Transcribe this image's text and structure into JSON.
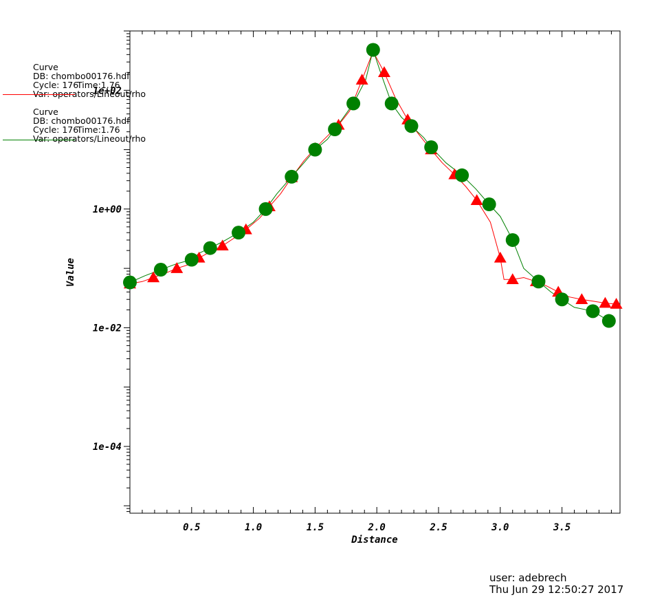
{
  "legend": [
    {
      "title": "Curve",
      "db": "DB: chombo00176.hdf",
      "cycle": "Cycle: 176",
      "time": "Time:1.76",
      "var": "Var: operators/Lineout/rho",
      "color": "#ff0000"
    },
    {
      "title": "Curve",
      "db": "DB: chombo00176.hdf",
      "cycle": "Cycle: 176",
      "time": "Time:1.76",
      "var": "Var: operators/Lineout/rho",
      "color": "#008000"
    }
  ],
  "footer": {
    "user": "user: adebrech",
    "date": "Thu Jun 29 12:50:27 2017"
  },
  "chart_data": {
    "type": "line",
    "xlabel": "Distance",
    "ylabel": "Value",
    "x_ticks": [
      "0.5",
      "1.0",
      "1.5",
      "2.0",
      "2.5",
      "3.0",
      "3.5"
    ],
    "y_ticks": [
      "1e-04",
      "1e-02",
      "1e+00",
      "1e+02"
    ],
    "xlim": [
      0.0,
      3.97
    ],
    "ylim": [
      7.5e-06,
      1000
    ],
    "yscale": "log",
    "series": [
      {
        "color": "#ff0000",
        "marker": "triangle",
        "x": [
          0.0,
          0.1,
          0.19,
          0.3,
          0.38,
          0.5,
          0.56,
          0.65,
          0.75,
          0.85,
          0.94,
          1.05,
          1.13,
          1.22,
          1.31,
          1.41,
          1.5,
          1.6,
          1.69,
          1.78,
          1.88,
          1.97,
          2.06,
          2.15,
          2.25,
          2.35,
          2.44,
          2.53,
          2.63,
          2.72,
          2.81,
          2.92,
          3.0,
          3.03,
          3.1,
          3.19,
          3.29,
          3.38,
          3.47,
          3.56,
          3.66,
          3.75,
          3.85,
          3.94
        ],
        "y": [
          0.055,
          0.06,
          0.07,
          0.085,
          0.1,
          0.12,
          0.15,
          0.19,
          0.24,
          0.33,
          0.45,
          0.7,
          1.1,
          1.8,
          3.4,
          6.5,
          10.5,
          17,
          26,
          45,
          150,
          450,
          200,
          75,
          32,
          17,
          10,
          6,
          3.8,
          2.4,
          1.4,
          0.6,
          0.15,
          0.065,
          0.065,
          0.07,
          0.06,
          0.05,
          0.04,
          0.033,
          0.03,
          0.028,
          0.026,
          0.025
        ]
      },
      {
        "color": "#008000",
        "marker": "circle",
        "x": [
          0.0,
          0.12,
          0.25,
          0.38,
          0.5,
          0.56,
          0.65,
          0.75,
          0.88,
          1.0,
          1.1,
          1.19,
          1.31,
          1.41,
          1.5,
          1.6,
          1.66,
          1.75,
          1.81,
          1.91,
          1.97,
          2.03,
          2.12,
          2.2,
          2.28,
          2.38,
          2.44,
          2.56,
          2.69,
          2.8,
          2.91,
          3.0,
          3.1,
          3.19,
          3.31,
          3.41,
          3.5,
          3.6,
          3.75,
          3.88
        ],
        "y": [
          0.058,
          0.075,
          0.095,
          0.12,
          0.14,
          0.18,
          0.22,
          0.28,
          0.4,
          0.6,
          1.0,
          1.8,
          3.5,
          6.0,
          10.0,
          15.0,
          22.0,
          40.0,
          60.0,
          150.0,
          480.0,
          200.0,
          60.0,
          35.0,
          25.0,
          16.0,
          11.0,
          6.0,
          3.7,
          2.2,
          1.2,
          0.75,
          0.3,
          0.1,
          0.06,
          0.04,
          0.03,
          0.022,
          0.019,
          0.013
        ]
      }
    ]
  }
}
